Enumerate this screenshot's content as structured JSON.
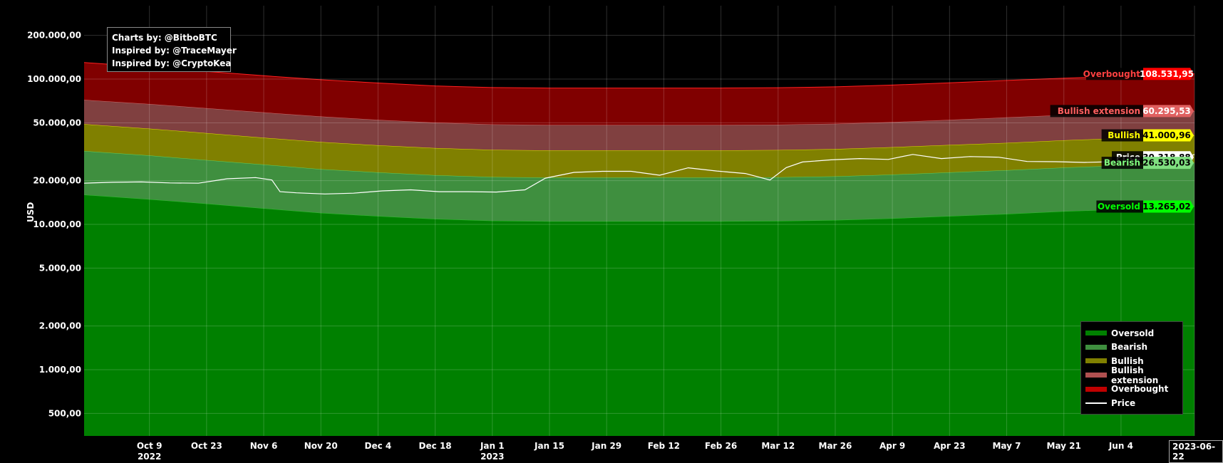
{
  "credits": {
    "line1": "Charts by: @BitboBTC",
    "line2": "Inspired by: @TraceMayer",
    "line3": "Inspired by: @CryptoKea"
  },
  "colors": {
    "oversold": "#008000",
    "bearish": "#3f8f3f",
    "bullish": "#808000",
    "bullish_extension": "#804040",
    "overbought": "#800000",
    "price": "#ffffff",
    "grid": "#3a3a3a"
  },
  "chart_data": {
    "type": "area",
    "ylabel": "USD",
    "y_scale": "log",
    "ylim": [
      350,
      320000
    ],
    "xlim": [
      "2022-09-23",
      "2023-06-22"
    ],
    "grid": true,
    "legend_position": "bottom-right",
    "y_ticks": [
      {
        "value": 200000,
        "label": "200.000,00"
      },
      {
        "value": 100000,
        "label": "100.000,00"
      },
      {
        "value": 50000,
        "label": "50.000,00"
      },
      {
        "value": 20000,
        "label": "20.000,00"
      },
      {
        "value": 10000,
        "label": "10.000,00"
      },
      {
        "value": 5000,
        "label": "5.000,00"
      },
      {
        "value": 2000,
        "label": "2.000,00"
      },
      {
        "value": 1000,
        "label": "1.000,00"
      },
      {
        "value": 500,
        "label": "500,00"
      }
    ],
    "x_ticks": [
      {
        "date": "2022-10-09",
        "label": "Oct 9",
        "sub": "2022"
      },
      {
        "date": "2022-10-23",
        "label": "Oct 23"
      },
      {
        "date": "2022-11-06",
        "label": "Nov 6"
      },
      {
        "date": "2022-11-20",
        "label": "Nov 20"
      },
      {
        "date": "2022-12-04",
        "label": "Dec 4"
      },
      {
        "date": "2022-12-18",
        "label": "Dec 18"
      },
      {
        "date": "2023-01-01",
        "label": "Jan 1",
        "sub": "2023"
      },
      {
        "date": "2023-01-15",
        "label": "Jan 15"
      },
      {
        "date": "2023-01-29",
        "label": "Jan 29"
      },
      {
        "date": "2023-02-12",
        "label": "Feb 12"
      },
      {
        "date": "2023-02-26",
        "label": "Feb 26"
      },
      {
        "date": "2023-03-12",
        "label": "Mar 12"
      },
      {
        "date": "2023-03-26",
        "label": "Mar 26"
      },
      {
        "date": "2023-04-09",
        "label": "Apr 9"
      },
      {
        "date": "2023-04-23",
        "label": "Apr 23"
      },
      {
        "date": "2023-05-07",
        "label": "May 7"
      },
      {
        "date": "2023-05-21",
        "label": "May 21"
      },
      {
        "date": "2023-06-04",
        "label": "Jun 4"
      }
    ],
    "current_date": "2023-06-22",
    "dates": [
      "2022-09-23",
      "2022-10-09",
      "2022-10-23",
      "2022-11-06",
      "2022-11-20",
      "2022-12-04",
      "2022-12-18",
      "2023-01-01",
      "2023-01-15",
      "2023-01-29",
      "2023-02-12",
      "2023-02-26",
      "2023-03-12",
      "2023-03-26",
      "2023-04-09",
      "2023-04-23",
      "2023-05-07",
      "2023-05-21",
      "2023-06-04",
      "2023-06-22"
    ],
    "series": [
      {
        "name": "Oversold",
        "key": "oversold",
        "values": [
          16000,
          14900,
          13900,
          12900,
          12000,
          11400,
          10900,
          10600,
          10500,
          10500,
          10500,
          10500,
          10550,
          10700,
          11000,
          11400,
          11800,
          12300,
          12700,
          13265.02
        ]
      },
      {
        "name": "Bearish",
        "key": "bearish",
        "values": [
          32000,
          29800,
          27700,
          25800,
          24000,
          22800,
          21800,
          21200,
          21000,
          21000,
          21000,
          21000,
          21100,
          21400,
          22000,
          22800,
          23600,
          24600,
          25400,
          26530.03
        ]
      },
      {
        "name": "Bullish",
        "key": "bullish",
        "values": [
          49000,
          45600,
          42500,
          39500,
          36900,
          35000,
          33500,
          32600,
          32300,
          32300,
          32300,
          32300,
          32500,
          33000,
          34000,
          35200,
          36400,
          37900,
          39200,
          41000.96
        ]
      },
      {
        "name": "Bullish extension",
        "key": "bullish_extension",
        "values": [
          72000,
          67400,
          63100,
          59000,
          55300,
          52400,
          50200,
          48800,
          48400,
          48400,
          48400,
          48400,
          48600,
          49300,
          50600,
          52400,
          54500,
          56600,
          58100,
          60295.53
        ]
      },
      {
        "name": "Overbought",
        "key": "overbought",
        "values": [
          130000,
          121000,
          113000,
          105500,
          99000,
          94000,
          89700,
          87500,
          86800,
          86800,
          86800,
          86800,
          87200,
          88500,
          91000,
          94300,
          98000,
          101500,
          104500,
          108531.95
        ]
      }
    ],
    "price": {
      "name": "Price",
      "dates": [
        "2022-09-23",
        "2022-09-30",
        "2022-10-07",
        "2022-10-14",
        "2022-10-21",
        "2022-10-28",
        "2022-11-04",
        "2022-11-08",
        "2022-11-10",
        "2022-11-14",
        "2022-11-21",
        "2022-11-28",
        "2022-12-05",
        "2022-12-12",
        "2022-12-19",
        "2022-12-26",
        "2023-01-02",
        "2023-01-09",
        "2023-01-14",
        "2023-01-21",
        "2023-01-28",
        "2023-02-04",
        "2023-02-11",
        "2023-02-18",
        "2023-02-25",
        "2023-03-04",
        "2023-03-10",
        "2023-03-14",
        "2023-03-18",
        "2023-03-25",
        "2023-04-01",
        "2023-04-08",
        "2023-04-14",
        "2023-04-21",
        "2023-04-28",
        "2023-05-05",
        "2023-05-12",
        "2023-05-19",
        "2023-05-26",
        "2023-06-02",
        "2023-06-09",
        "2023-06-15",
        "2023-06-22"
      ],
      "values": [
        19200,
        19500,
        19600,
        19300,
        19200,
        20600,
        21000,
        20200,
        16800,
        16500,
        16200,
        16400,
        17000,
        17300,
        16800,
        16800,
        16700,
        17300,
        20800,
        22800,
        23200,
        23200,
        21800,
        24500,
        23300,
        22400,
        20200,
        24600,
        26900,
        27800,
        28400,
        28000,
        30300,
        28400,
        29300,
        29000,
        27100,
        27000,
        26700,
        27000,
        26800,
        25600,
        30318.88
      ]
    },
    "labels": [
      {
        "key": "overbought",
        "name": "Overbought",
        "value": "108.531,95",
        "bg": "#ff0000",
        "fg": "#ffffff",
        "tag": "#ff4040"
      },
      {
        "key": "bullish_extension",
        "name": "Bullish extension",
        "value": "60.295,53",
        "bg": "#e06060",
        "fg": "#ffffff",
        "tag": "#ff6060"
      },
      {
        "key": "bullish",
        "name": "Bullish",
        "value": "41.000,96",
        "bg": "#ffff00",
        "fg": "#000000",
        "tag": "#ffff00"
      },
      {
        "key": "price",
        "name": "Price",
        "value": "30.318,88",
        "bg": "#ffffff",
        "fg": "#000000",
        "tag": "#ffffff"
      },
      {
        "key": "bearish",
        "name": "Bearish",
        "value": "26.530,03",
        "bg": "#80e080",
        "fg": "#000000",
        "tag": "#80ff80"
      },
      {
        "key": "oversold",
        "name": "Oversold",
        "value": "13.265,02",
        "bg": "#00ff00",
        "fg": "#000000",
        "tag": "#00ff00"
      }
    ]
  },
  "legend": {
    "items": [
      {
        "label": "Oversold",
        "color": "#008000"
      },
      {
        "label": "Bearish",
        "color": "#3f8f3f"
      },
      {
        "label": "Bullish",
        "color": "#808000"
      },
      {
        "label": "Bullish extension",
        "color": "#b05050"
      },
      {
        "label": "Overbought",
        "color": "#c00000"
      },
      {
        "label": "Price",
        "color": "#ffffff"
      }
    ]
  }
}
